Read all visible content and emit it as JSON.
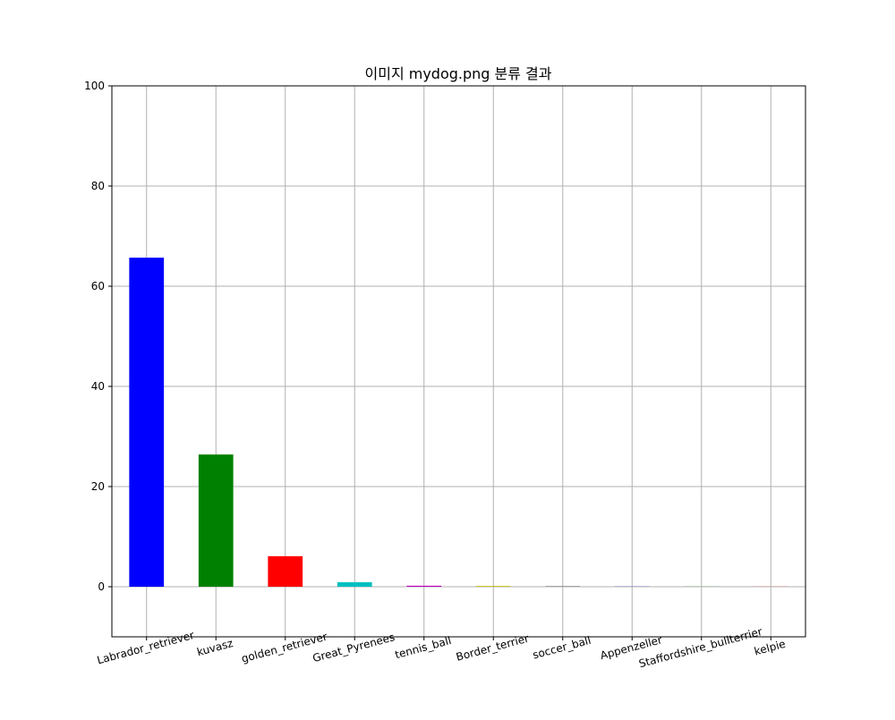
{
  "chart_data": {
    "type": "bar",
    "title": "이미지 mydog.png 분류 결과",
    "xlabel": "",
    "ylabel": "",
    "categories": [
      "Labrador_retriever",
      "kuvasz",
      "golden_retriever",
      "Great_Pyrenees",
      "tennis_ball",
      "Border_terrier",
      "soccer_ball",
      "Appenzeller",
      "Staffordshire_bullterrier",
      "kelpie"
    ],
    "values": [
      65.7,
      26.4,
      6.1,
      0.9,
      0.2,
      0.15,
      0.05,
      0.03,
      0.02,
      0.02
    ],
    "colors": [
      "#0000ff",
      "#008000",
      "#ff0000",
      "#00bfbf",
      "#bf00bf",
      "#bfbf00",
      "#000000",
      "#0000ff",
      "#008000",
      "#ff0000"
    ],
    "ylim": [
      -10,
      100
    ],
    "yticks": [
      0,
      20,
      40,
      60,
      80,
      100
    ],
    "grid": true,
    "legend": "none",
    "xtick_rotation_deg": -15
  }
}
